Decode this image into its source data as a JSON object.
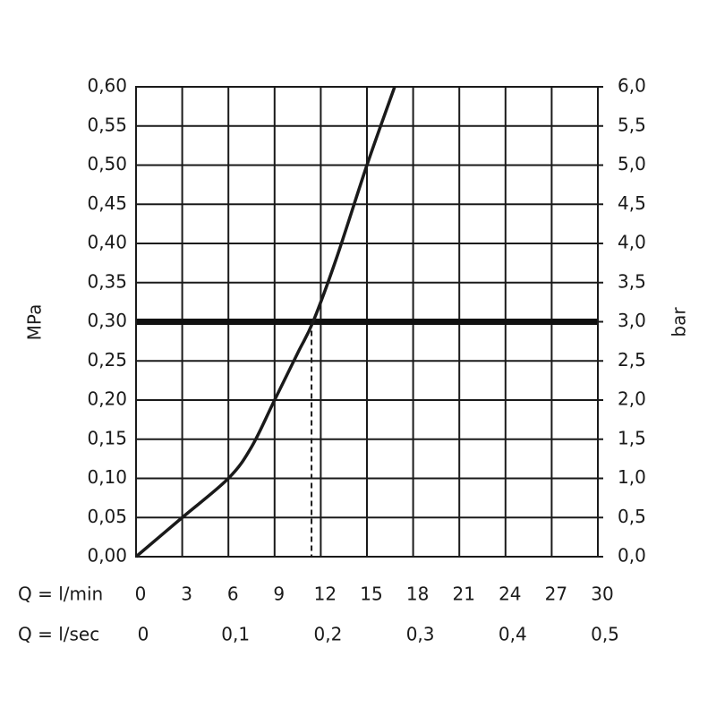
{
  "chart_data": {
    "type": "line",
    "y_label": "MPa",
    "y2_label": "bar",
    "x_row_label": "Q = l/min",
    "x2_row_label": "Q = l/sec",
    "x": [
      0,
      3,
      6,
      7.5,
      9,
      10.5,
      11.5,
      13,
      15,
      16.8
    ],
    "values": [
      0,
      0.05,
      0.1,
      0.14,
      0.2,
      0.26,
      0.3,
      0.38,
      0.5,
      0.6
    ],
    "color": "#1a1a1a",
    "xlim": [
      0,
      30
    ],
    "xticks": [
      0,
      3,
      6,
      9,
      12,
      15,
      18,
      21,
      24,
      27,
      30
    ],
    "x2lim": [
      0,
      0.5
    ],
    "x2ticks": [
      0,
      {
        "value": 0.1,
        "label": "0,1"
      },
      {
        "value": 0.2,
        "label": "0,2"
      },
      {
        "value": 0.3,
        "label": "0,3"
      },
      {
        "value": 0.4,
        "label": "0,4"
      },
      {
        "value": 0.5,
        "label": "0,5"
      }
    ],
    "ylim": [
      0,
      0.6
    ],
    "yticks": [
      {
        "value": 0,
        "label": "0,00"
      },
      {
        "value": 0.05,
        "label": "0,05"
      },
      {
        "value": 0.1,
        "label": "0,10"
      },
      {
        "value": 0.15,
        "label": "0,15"
      },
      {
        "value": 0.2,
        "label": "0,20"
      },
      {
        "value": 0.25,
        "label": "0,25"
      },
      {
        "value": 0.3,
        "label": "0,30"
      },
      {
        "value": 0.35,
        "label": "0,35"
      },
      {
        "value": 0.4,
        "label": "0,40"
      },
      {
        "value": 0.45,
        "label": "0,45"
      },
      {
        "value": 0.5,
        "label": "0,50"
      },
      {
        "value": 0.55,
        "label": "0,55"
      },
      {
        "value": 0.6,
        "label": "0,60"
      }
    ],
    "y2lim": [
      0,
      6
    ],
    "y2ticks": [
      {
        "value": 0,
        "label": "0,0"
      },
      {
        "value": 0.5,
        "label": "0,5"
      },
      {
        "value": 1,
        "label": "1,0"
      },
      {
        "value": 1.5,
        "label": "1,5"
      },
      {
        "value": 2,
        "label": "2,0"
      },
      {
        "value": 2.5,
        "label": "2,5"
      },
      {
        "value": 3,
        "label": "3,0"
      },
      {
        "value": 3.5,
        "label": "3,5"
      },
      {
        "value": 4,
        "label": "4,0"
      },
      {
        "value": 4.5,
        "label": "4,5"
      },
      {
        "value": 5,
        "label": "5,0"
      },
      {
        "value": 5.5,
        "label": "5,5"
      },
      {
        "value": 6,
        "label": "6,0"
      }
    ],
    "grid": true,
    "threshold": {
      "y": 0.3,
      "x": 11.4
    }
  }
}
